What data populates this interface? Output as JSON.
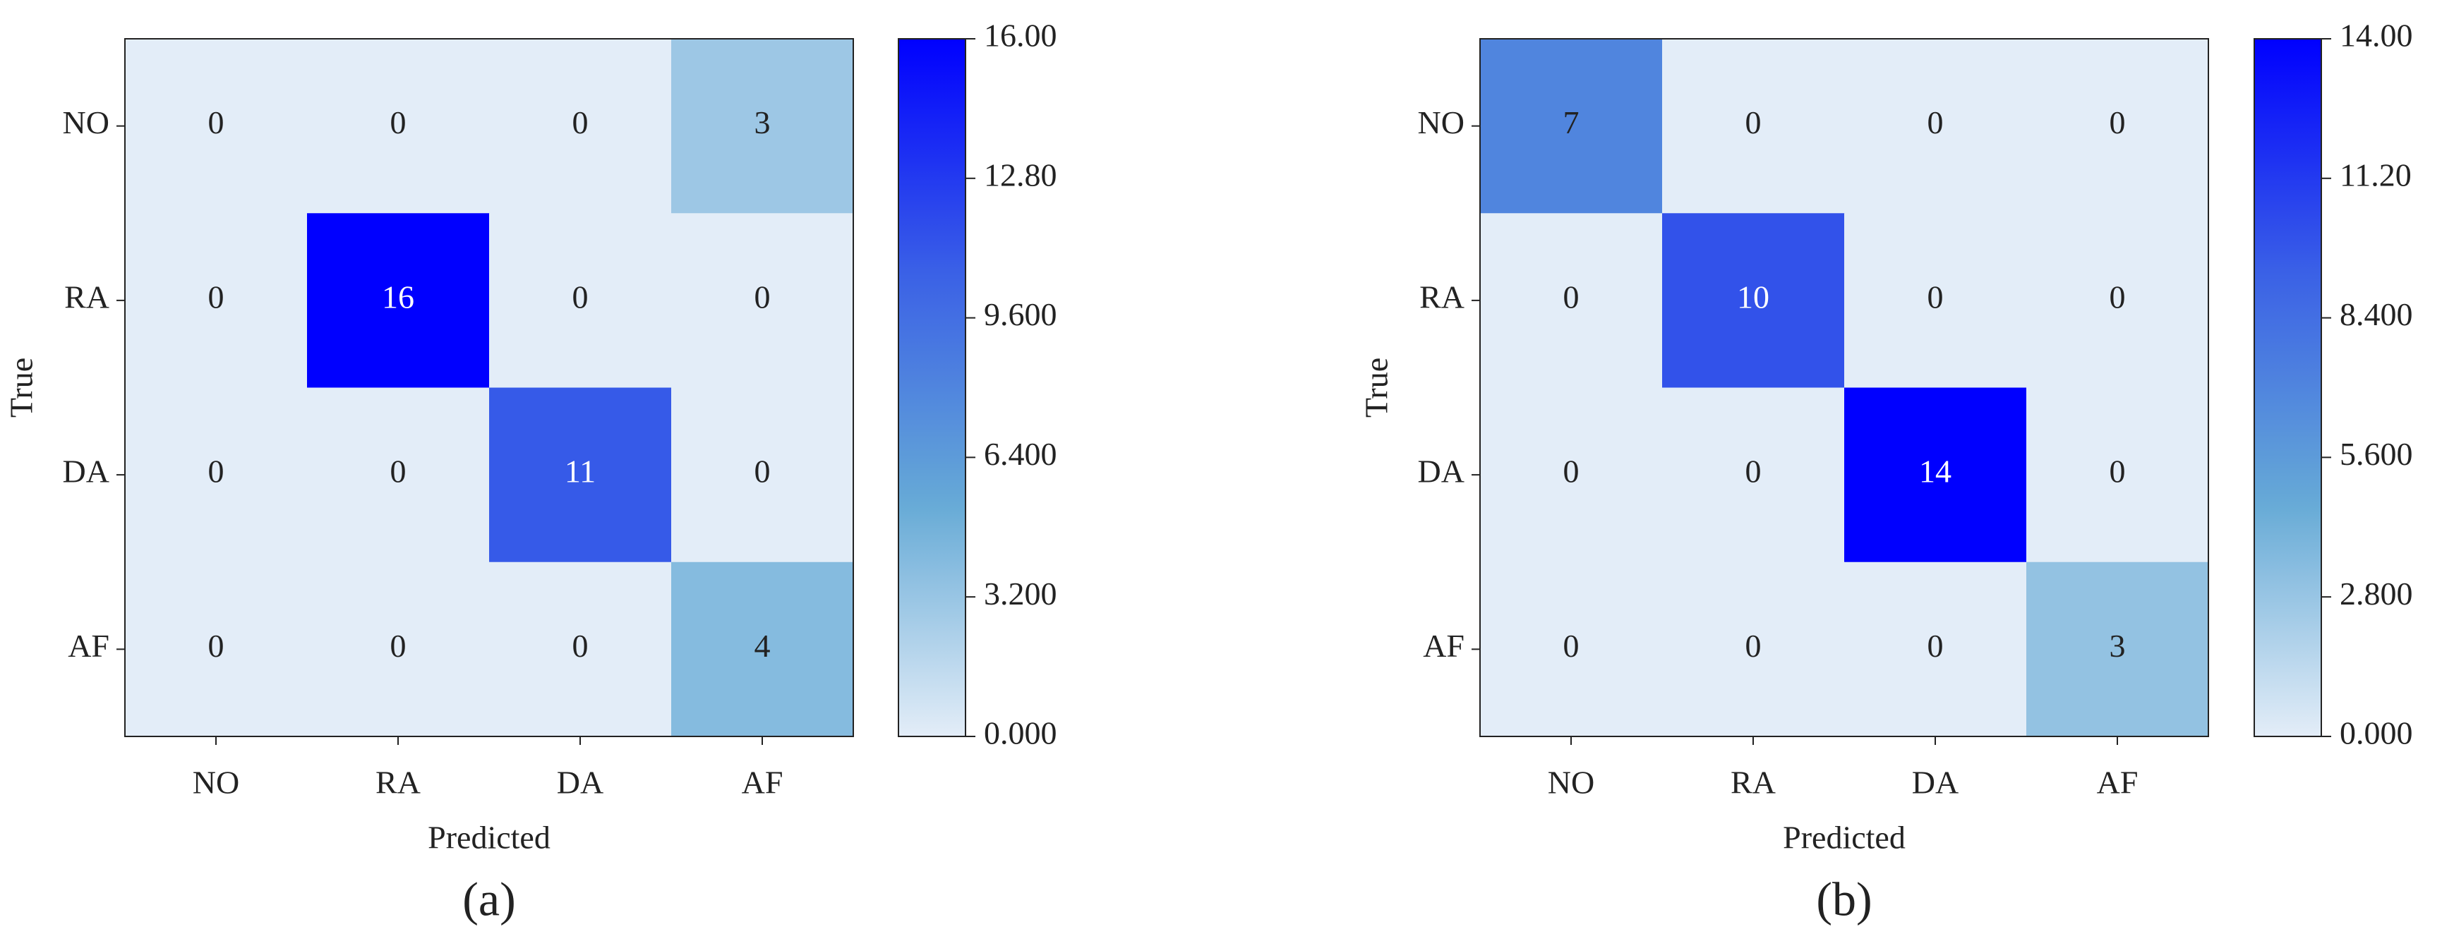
{
  "chart_data": [
    {
      "type": "heatmap",
      "caption": "(a)",
      "x_label": "Predicted",
      "y_label": "True",
      "x_categories": [
        "NO",
        "RA",
        "DA",
        "AF"
      ],
      "y_categories": [
        "NO",
        "RA",
        "DA",
        "AF"
      ],
      "values": [
        [
          0,
          0,
          0,
          3
        ],
        [
          0,
          16,
          0,
          0
        ],
        [
          0,
          0,
          11,
          0
        ],
        [
          0,
          0,
          0,
          4
        ]
      ],
      "zlim": [
        0,
        16
      ],
      "zticks": [
        {
          "value": 0,
          "label": "0.000"
        },
        {
          "value": 3.2,
          "label": "3.200"
        },
        {
          "value": 6.4,
          "label": "6.400"
        },
        {
          "value": 9.6,
          "label": "9.600"
        },
        {
          "value": 12.8,
          "label": "12.80"
        },
        {
          "value": 16,
          "label": "16.00"
        }
      ],
      "colormap": [
        "#e3edf8",
        "#66aad6",
        "#3a60e6",
        "#0000ff"
      ]
    },
    {
      "type": "heatmap",
      "caption": "(b)",
      "x_label": "Predicted",
      "y_label": "True",
      "x_categories": [
        "NO",
        "RA",
        "DA",
        "AF"
      ],
      "y_categories": [
        "NO",
        "RA",
        "DA",
        "AF"
      ],
      "values": [
        [
          7,
          0,
          0,
          0
        ],
        [
          0,
          10,
          0,
          0
        ],
        [
          0,
          0,
          14,
          0
        ],
        [
          0,
          0,
          0,
          3
        ]
      ],
      "zlim": [
        0,
        14
      ],
      "zticks": [
        {
          "value": 0,
          "label": "0.000"
        },
        {
          "value": 2.8,
          "label": "2.800"
        },
        {
          "value": 5.6,
          "label": "5.600"
        },
        {
          "value": 8.4,
          "label": "8.400"
        },
        {
          "value": 11.2,
          "label": "11.20"
        },
        {
          "value": 14,
          "label": "14.00"
        }
      ],
      "colormap": [
        "#e3edf8",
        "#66aad6",
        "#3a60e6",
        "#0000ff"
      ]
    }
  ]
}
